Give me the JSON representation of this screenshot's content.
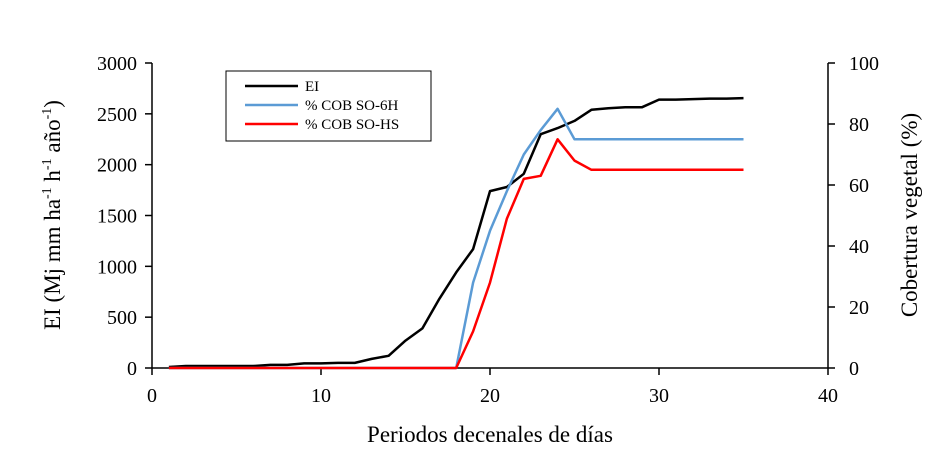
{
  "chart_data": {
    "type": "line",
    "title": "",
    "xlabel": "Periodos decenales de días",
    "ylabel_left": "EI  (Mj mm ha-1 h-1 año-1)",
    "ylabel_left_parts": {
      "base": "EI  (Mj mm ha",
      "sup1": "-1",
      "mid1": " h",
      "sup2": "-1",
      "mid2": " año",
      "sup3": "-1",
      "end": ")"
    },
    "ylabel_right": "Cobertura vegetal (%)",
    "xlim": [
      0,
      40
    ],
    "ylim_left": [
      0,
      3000
    ],
    "ylim_right": [
      0,
      100
    ],
    "x_ticks": [
      "0",
      "10",
      "20",
      "30",
      "40"
    ],
    "y_left_ticks": [
      "0",
      "500",
      "1000",
      "1500",
      "2000",
      "2500",
      "3000"
    ],
    "y_right_ticks": [
      "0",
      "20",
      "40",
      "60",
      "80",
      "100"
    ],
    "legend_position": "top-left",
    "series": [
      {
        "name": "EI",
        "axis": "left",
        "color": "#000000",
        "x": [
          1,
          2,
          3,
          4,
          5,
          6,
          7,
          8,
          9,
          10,
          11,
          12,
          13,
          14,
          15,
          16,
          17,
          18,
          19,
          20,
          21,
          22,
          23,
          24,
          25,
          26,
          27,
          28,
          29,
          30,
          31,
          32,
          33,
          34,
          35
        ],
        "values": [
          10,
          20,
          20,
          20,
          20,
          20,
          30,
          30,
          45,
          45,
          50,
          50,
          90,
          120,
          270,
          390,
          680,
          940,
          1170,
          1740,
          1780,
          1910,
          2300,
          2360,
          2430,
          2540,
          2555,
          2565,
          2565,
          2640,
          2640,
          2645,
          2650,
          2650,
          2655
        ]
      },
      {
        "name": "% COB SO-6H",
        "axis": "right",
        "color": "#5B9BD5",
        "x": [
          1,
          18,
          19,
          20,
          21,
          22,
          23,
          24,
          25,
          26,
          30,
          35
        ],
        "values": [
          0,
          0,
          28,
          45,
          58,
          70,
          78,
          85,
          75,
          75,
          75,
          75
        ]
      },
      {
        "name": "% COB SO-HS",
        "axis": "right",
        "color": "#FF0000",
        "x": [
          1,
          18,
          19,
          20,
          21,
          22,
          23,
          24,
          25,
          26,
          30,
          35
        ],
        "values": [
          0,
          0,
          12,
          28,
          49,
          62,
          63,
          75,
          68,
          65,
          65,
          65
        ]
      }
    ]
  }
}
